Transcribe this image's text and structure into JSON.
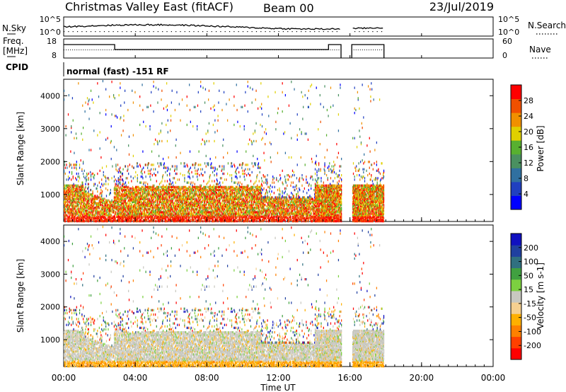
{
  "header": {
    "title": "Christmas Valley East (fitACF)",
    "beam": "Beam 00",
    "date": "23/Jul/2019"
  },
  "top_panel_1": {
    "left_label": "N.Sky",
    "right_label": "N.Search",
    "left_ticks": [
      "10^5",
      "10^0"
    ],
    "right_ticks": [
      "10^5",
      "10^0"
    ]
  },
  "top_panel_2": {
    "left_label_1": "Freq.",
    "left_label_2": "[MHz]",
    "right_label": "Nave",
    "left_ticks": [
      "18",
      "8"
    ],
    "right_ticks": [
      "60",
      "0"
    ]
  },
  "cpid": {
    "label": "CPID",
    "text": "normal (fast) -151 RF"
  },
  "colors": {
    "power": [
      "#0000ff",
      "#2040c0",
      "#3070a0",
      "#4a9060",
      "#58b030",
      "#e0d000",
      "#f09000",
      "#f05000",
      "#ff0000"
    ],
    "velocity": [
      "#ff0000",
      "#ff4000",
      "#ff8000",
      "#ffb000",
      "#f5d090",
      "#c8c8c0",
      "#7cd040",
      "#40a040",
      "#307080",
      "#2040a0",
      "#1010c0"
    ]
  },
  "chart_data": [
    {
      "type": "heatmap",
      "name": "power",
      "ylabel": "Slant Range [km]",
      "yticks": [
        1000,
        2000,
        3000,
        4000
      ],
      "ylim": [
        180,
        4500
      ],
      "xlim": [
        0,
        24
      ],
      "colorbar": {
        "label": "Power [dB]",
        "ticks": [
          "4",
          "8",
          "12",
          "16",
          "20",
          "24",
          "28"
        ],
        "range": [
          0,
          32
        ]
      },
      "gaps_ut_hours": [
        [
          15.5,
          16.1
        ],
        [
          17.9,
          24
        ]
      ]
    },
    {
      "type": "heatmap",
      "name": "velocity",
      "ylabel": "Slant Range [km]",
      "yticks": [
        1000,
        2000,
        3000,
        4000
      ],
      "ylim": [
        180,
        4500
      ],
      "xlim": [
        0,
        24
      ],
      "xlabel": "Time UT",
      "xticks": [
        "00:00",
        "04:00",
        "08:00",
        "12:00",
        "16:00",
        "20:00",
        "00:00"
      ],
      "colorbar": {
        "label": "Velocity [m s-1]",
        "ticks": [
          "-200",
          "-100",
          "-50",
          "-15",
          "15",
          "50",
          "100",
          "200"
        ],
        "range": [
          -250,
          250
        ]
      }
    }
  ]
}
